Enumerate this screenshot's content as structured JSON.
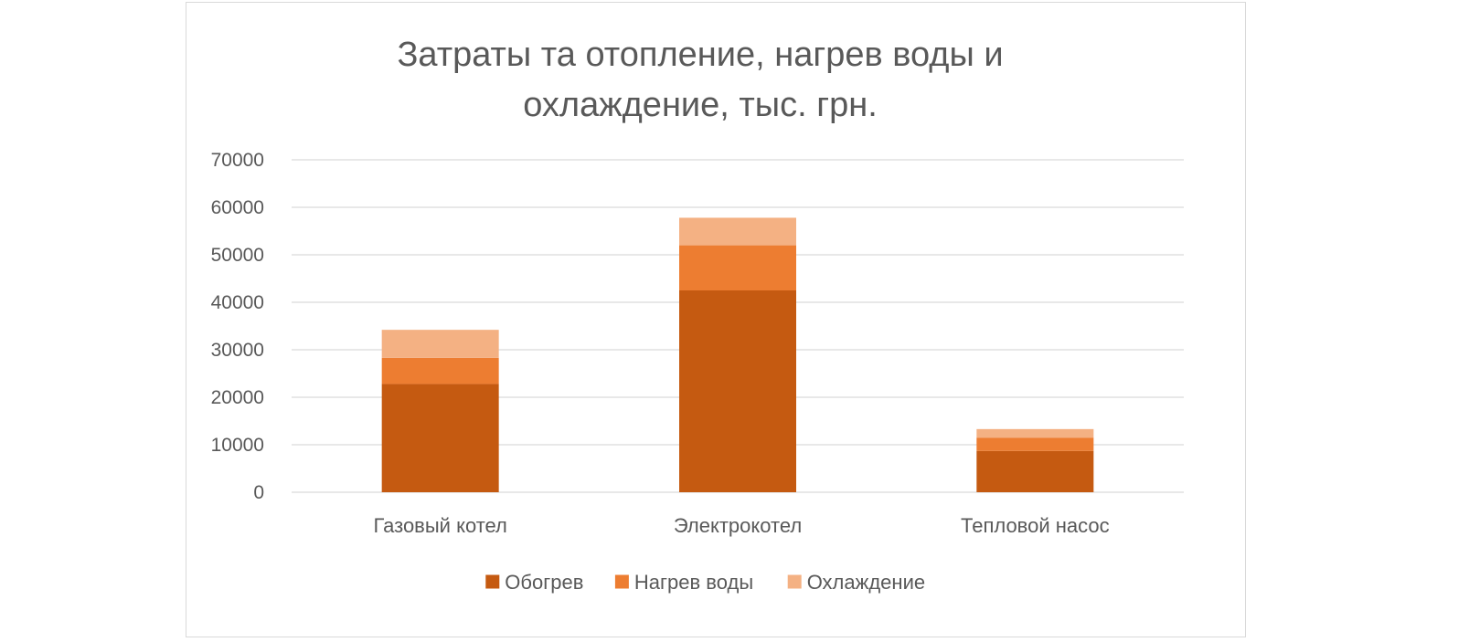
{
  "chart_data": {
    "type": "bar",
    "stacked": true,
    "title_lines": [
      "Затраты та отопление, нагрев воды и",
      "охлаждение, тыс. грн."
    ],
    "categories": [
      "Газовый котел",
      "Электрокотел",
      "Тепловой насос"
    ],
    "series": [
      {
        "name": "Обогрев",
        "values": [
          22800,
          42500,
          8700
        ],
        "color": "#c55a11"
      },
      {
        "name": "Нагрев воды",
        "values": [
          5500,
          9500,
          2800
        ],
        "color": "#ed7d31"
      },
      {
        "name": "Охлаждение",
        "values": [
          5900,
          5800,
          1800
        ],
        "color": "#f4b183"
      }
    ],
    "yticks": [
      0,
      10000,
      20000,
      30000,
      40000,
      50000,
      60000,
      70000
    ],
    "ylim": [
      0,
      70000
    ],
    "grid": true,
    "legend_position": "bottom",
    "gridline_color": "#d9d9d9",
    "text_color": "#595959"
  }
}
